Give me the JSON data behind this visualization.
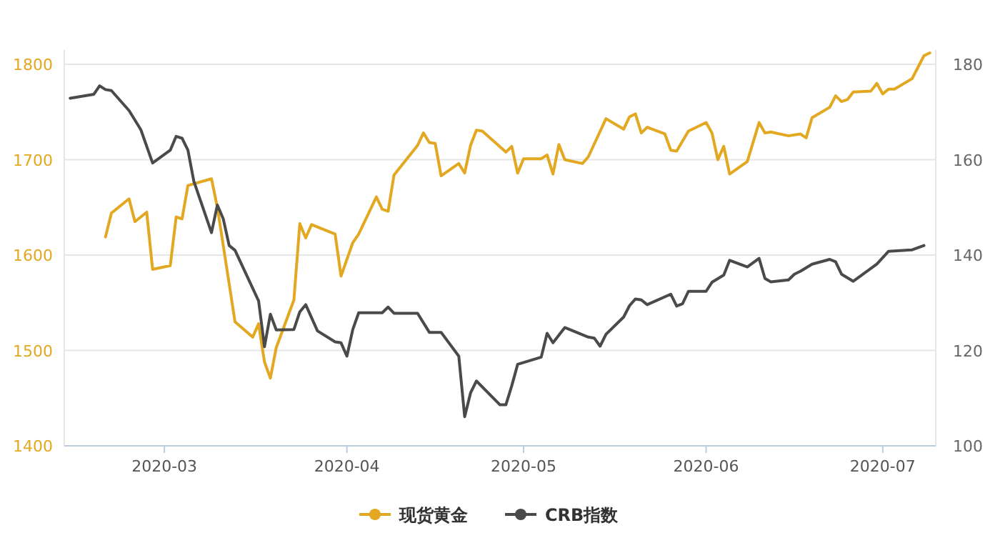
{
  "chart_data": {
    "type": "line",
    "xlim": [
      "2020-02-13",
      "2020-07-10"
    ],
    "xticks": [
      {
        "value": "2020-03-01",
        "label": "2020-03"
      },
      {
        "value": "2020-04-01",
        "label": "2020-04"
      },
      {
        "value": "2020-05-01",
        "label": "2020-05"
      },
      {
        "value": "2020-06-01",
        "label": "2020-06"
      },
      {
        "value": "2020-07-01",
        "label": "2020-07"
      }
    ],
    "ylim": [
      1400,
      1815
    ],
    "yticks": [
      1400,
      1500,
      1600,
      1700,
      1800
    ],
    "y2lim": [
      100,
      183
    ],
    "y2ticks": [
      100,
      120,
      140,
      160,
      180
    ],
    "grid": "y",
    "legend": "bottom",
    "series": [
      {
        "name": "现货黄金",
        "color": "#e3a821",
        "x": [
          "2020-02-20",
          "2020-02-21",
          "2020-02-24",
          "2020-02-25",
          "2020-02-27",
          "2020-02-28",
          "2020-03-02",
          "2020-03-03",
          "2020-03-04",
          "2020-03-05",
          "2020-03-09",
          "2020-03-10",
          "2020-03-13",
          "2020-03-16",
          "2020-03-17",
          "2020-03-18",
          "2020-03-19",
          "2020-03-20",
          "2020-03-23",
          "2020-03-24",
          "2020-03-25",
          "2020-03-26",
          "2020-03-30",
          "2020-03-31",
          "2020-04-02",
          "2020-04-03",
          "2020-04-06",
          "2020-04-07",
          "2020-04-08",
          "2020-04-09",
          "2020-04-13",
          "2020-04-14",
          "2020-04-15",
          "2020-04-16",
          "2020-04-17",
          "2020-04-20",
          "2020-04-21",
          "2020-04-22",
          "2020-04-23",
          "2020-04-24",
          "2020-04-28",
          "2020-04-29",
          "2020-04-30",
          "2020-05-01",
          "2020-05-04",
          "2020-05-05",
          "2020-05-06",
          "2020-05-07",
          "2020-05-08",
          "2020-05-11",
          "2020-05-12",
          "2020-05-15",
          "2020-05-18",
          "2020-05-19",
          "2020-05-20",
          "2020-05-21",
          "2020-05-22",
          "2020-05-25",
          "2020-05-26",
          "2020-05-27",
          "2020-05-29",
          "2020-06-01",
          "2020-06-02",
          "2020-06-03",
          "2020-06-04",
          "2020-06-05",
          "2020-06-08",
          "2020-06-10",
          "2020-06-11",
          "2020-06-12",
          "2020-06-15",
          "2020-06-17",
          "2020-06-18",
          "2020-06-19",
          "2020-06-22",
          "2020-06-23",
          "2020-06-24",
          "2020-06-25",
          "2020-06-26",
          "2020-06-29",
          "2020-06-30",
          "2020-07-01",
          "2020-07-02",
          "2020-07-03",
          "2020-07-06",
          "2020-07-07",
          "2020-07-08",
          "2020-07-09"
        ],
        "values": [
          1619,
          1644,
          1659,
          1635,
          1645,
          1585,
          1589,
          1640,
          1638,
          1673,
          1680,
          1650,
          1530,
          1514,
          1528,
          1488,
          1471,
          1503,
          1553,
          1633,
          1618,
          1632,
          1622,
          1578,
          1613,
          1622,
          1661,
          1648,
          1646,
          1684,
          1715,
          1728,
          1718,
          1717,
          1683,
          1696,
          1686,
          1715,
          1731,
          1730,
          1708,
          1714,
          1686,
          1701,
          1701,
          1705,
          1685,
          1716,
          1700,
          1696,
          1703,
          1743,
          1732,
          1745,
          1748,
          1728,
          1734,
          1727,
          1710,
          1709,
          1730,
          1739,
          1728,
          1700,
          1714,
          1685,
          1698,
          1739,
          1728,
          1729,
          1725,
          1727,
          1723,
          1744,
          1755,
          1767,
          1761,
          1763,
          1771,
          1772,
          1780,
          1769,
          1774,
          1774,
          1785,
          1797,
          1809,
          1812
        ]
      },
      {
        "name": "CRB指数",
        "color": "#4a4a4a",
        "axis": "y2",
        "x": [
          "2020-02-14",
          "2020-02-18",
          "2020-02-19",
          "2020-02-20",
          "2020-02-21",
          "2020-02-24",
          "2020-02-26",
          "2020-02-28",
          "2020-03-02",
          "2020-03-03",
          "2020-03-04",
          "2020-03-05",
          "2020-03-06",
          "2020-03-09",
          "2020-03-10",
          "2020-03-11",
          "2020-03-12",
          "2020-03-13",
          "2020-03-17",
          "2020-03-18",
          "2020-03-19",
          "2020-03-20",
          "2020-03-23",
          "2020-03-24",
          "2020-03-25",
          "2020-03-27",
          "2020-03-30",
          "2020-03-31",
          "2020-04-01",
          "2020-04-02",
          "2020-04-03",
          "2020-04-07",
          "2020-04-08",
          "2020-04-09",
          "2020-04-13",
          "2020-04-15",
          "2020-04-17",
          "2020-04-20",
          "2020-04-21",
          "2020-04-22",
          "2020-04-23",
          "2020-04-27",
          "2020-04-28",
          "2020-04-29",
          "2020-04-30",
          "2020-05-04",
          "2020-05-05",
          "2020-05-06",
          "2020-05-08",
          "2020-05-12",
          "2020-05-13",
          "2020-05-14",
          "2020-05-15",
          "2020-05-18",
          "2020-05-19",
          "2020-05-20",
          "2020-05-21",
          "2020-05-22",
          "2020-05-26",
          "2020-05-27",
          "2020-05-28",
          "2020-05-29",
          "2020-06-01",
          "2020-06-02",
          "2020-06-04",
          "2020-06-05",
          "2020-06-08",
          "2020-06-10",
          "2020-06-11",
          "2020-06-12",
          "2020-06-15",
          "2020-06-16",
          "2020-06-17",
          "2020-06-19",
          "2020-06-22",
          "2020-06-23",
          "2020-06-24",
          "2020-06-26",
          "2020-06-30",
          "2020-07-02",
          "2020-07-06",
          "2020-07-08"
        ],
        "values": [
          172.9,
          173.7,
          175.5,
          174.7,
          174.5,
          170.3,
          166.3,
          159.3,
          162.0,
          164.9,
          164.5,
          162.0,
          155.5,
          144.7,
          150.5,
          147.6,
          142.0,
          141.0,
          130.4,
          120.8,
          127.6,
          124.3,
          124.4,
          128.1,
          129.6,
          124.1,
          121.8,
          121.6,
          118.8,
          124.4,
          127.9,
          127.9,
          129.1,
          127.8,
          127.8,
          123.8,
          123.8,
          118.8,
          106.1,
          111.1,
          113.6,
          108.6,
          108.6,
          112.6,
          117.1,
          118.6,
          123.6,
          121.6,
          124.8,
          122.8,
          122.6,
          120.9,
          123.4,
          127.0,
          129.4,
          130.8,
          130.6,
          129.6,
          131.8,
          129.3,
          129.8,
          132.4,
          132.4,
          134.3,
          135.8,
          138.9,
          137.5,
          139.3,
          135.1,
          134.4,
          134.8,
          136.0,
          136.6,
          138.1,
          139.1,
          138.6,
          136.0,
          134.5,
          138.1,
          140.8,
          141.1,
          142.0
        ]
      }
    ]
  }
}
